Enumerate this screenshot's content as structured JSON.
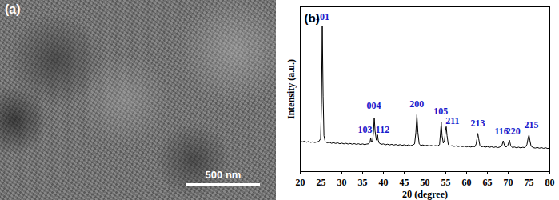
{
  "image": {
    "label": "(a)",
    "scale_bar_label": "500 nm"
  },
  "chart_data": {
    "type": "line",
    "title": "(b)",
    "x_label": "2θ (degree)",
    "y_label": "Intensity (a.u.)",
    "color": "#000000",
    "xlim": [
      20,
      80
    ],
    "xticks": [
      20,
      25,
      30,
      35,
      40,
      45,
      50,
      55,
      60,
      65,
      70,
      75,
      80
    ],
    "ylim": [
      0,
      110
    ],
    "tick_labels": "x",
    "grid": false,
    "x": [
      20,
      20.5,
      21,
      21.5,
      22,
      22.5,
      23,
      23.5,
      24,
      24.5,
      24.9,
      25.1,
      25.3,
      25.5,
      25.7,
      26,
      26.5,
      27,
      27.5,
      28,
      28.5,
      29,
      29.5,
      30,
      30.5,
      31,
      31.5,
      32,
      32.5,
      33,
      33.5,
      34,
      34.5,
      35,
      35.5,
      36,
      36.5,
      36.8,
      36.95,
      37.1,
      37.4,
      37.6,
      37.8,
      38.0,
      38.3,
      38.45,
      38.6,
      38.75,
      39,
      39.5,
      40,
      40.5,
      41,
      41.5,
      42,
      42.5,
      43,
      43.5,
      44,
      44.5,
      45,
      45.5,
      46,
      46.5,
      47,
      47.5,
      47.8,
      48.05,
      48.3,
      48.6,
      49,
      49.5,
      50,
      50.5,
      51,
      51.5,
      52,
      52.5,
      53,
      53.5,
      53.7,
      53.9,
      54.1,
      54.4,
      54.7,
      54.9,
      55.1,
      55.3,
      55.6,
      56,
      56.5,
      57,
      57.5,
      58,
      58.5,
      59,
      59.5,
      60,
      60.5,
      61,
      61.5,
      62,
      62.3,
      62.5,
      62.7,
      62.9,
      63.2,
      63.5,
      64,
      64.5,
      65,
      65.5,
      66,
      66.5,
      67,
      67.5,
      68,
      68.5,
      68.8,
      69.1,
      69.5,
      69.9,
      70.3,
      70.6,
      71,
      71.5,
      72,
      72.5,
      73,
      73.5,
      74,
      74.5,
      74.8,
      75.0,
      75.2,
      75.5,
      76,
      76.5,
      77,
      77.5,
      78,
      78.5,
      79,
      79.5,
      80
    ],
    "values": [
      20.5,
      19.8,
      20.3,
      19.6,
      20.1,
      19.5,
      19.9,
      19.4,
      19.8,
      20.2,
      22,
      45,
      97,
      50,
      24,
      20,
      19.2,
      19.6,
      18.9,
      19.3,
      18.8,
      19.2,
      18.6,
      19,
      18.5,
      18.9,
      18.4,
      18.8,
      18.3,
      18.7,
      18.2,
      18.6,
      18.1,
      18.5,
      18.0,
      18.4,
      18.6,
      20,
      22.5,
      20,
      20.5,
      26,
      36,
      27,
      21,
      22,
      24.5,
      21,
      19,
      18.2,
      18.5,
      17.9,
      18.3,
      17.8,
      18.2,
      17.7,
      18.1,
      17.6,
      18,
      17.5,
      17.9,
      17.4,
      17.8,
      17.3,
      17.7,
      18.5,
      26,
      38,
      26,
      18.5,
      17.4,
      17.8,
      17.2,
      17.6,
      17.1,
      17.5,
      17,
      17.4,
      17.1,
      18,
      25,
      33,
      24,
      19,
      21,
      27,
      30,
      24,
      18,
      17,
      17.3,
      16.8,
      17.2,
      16.7,
      17.1,
      16.6,
      17,
      16.5,
      16.9,
      16.4,
      16.8,
      16.6,
      18.5,
      22,
      25.5,
      22,
      17.5,
      16.5,
      16.8,
      16.3,
      16.7,
      16.2,
      16.6,
      16.1,
      16.5,
      16,
      16.4,
      17.5,
      20.5,
      17.5,
      16.3,
      17.5,
      21,
      17.5,
      16,
      16.4,
      15.9,
      16.3,
      15.8,
      16.2,
      16,
      18,
      22.5,
      24.5,
      21,
      17,
      16,
      15.7,
      16.1,
      15.6,
      16,
      15.5,
      15.9,
      15.4,
      15.8
    ],
    "annotations": [
      {
        "text": "101",
        "x": 25.3,
        "y": 103
      },
      {
        "text": "004",
        "x": 37.7,
        "y": 44
      },
      {
        "text": "103",
        "x": 35.6,
        "y": 28
      },
      {
        "text": "112",
        "x": 39.8,
        "y": 28
      },
      {
        "text": "200",
        "x": 48.05,
        "y": 45
      },
      {
        "text": "105",
        "x": 53.8,
        "y": 40
      },
      {
        "text": "211",
        "x": 56.6,
        "y": 34
      },
      {
        "text": "213",
        "x": 62.7,
        "y": 32
      },
      {
        "text": "116",
        "x": 68.4,
        "y": 27
      },
      {
        "text": "220",
        "x": 71.2,
        "y": 27
      },
      {
        "text": "215",
        "x": 75.6,
        "y": 31
      }
    ]
  }
}
